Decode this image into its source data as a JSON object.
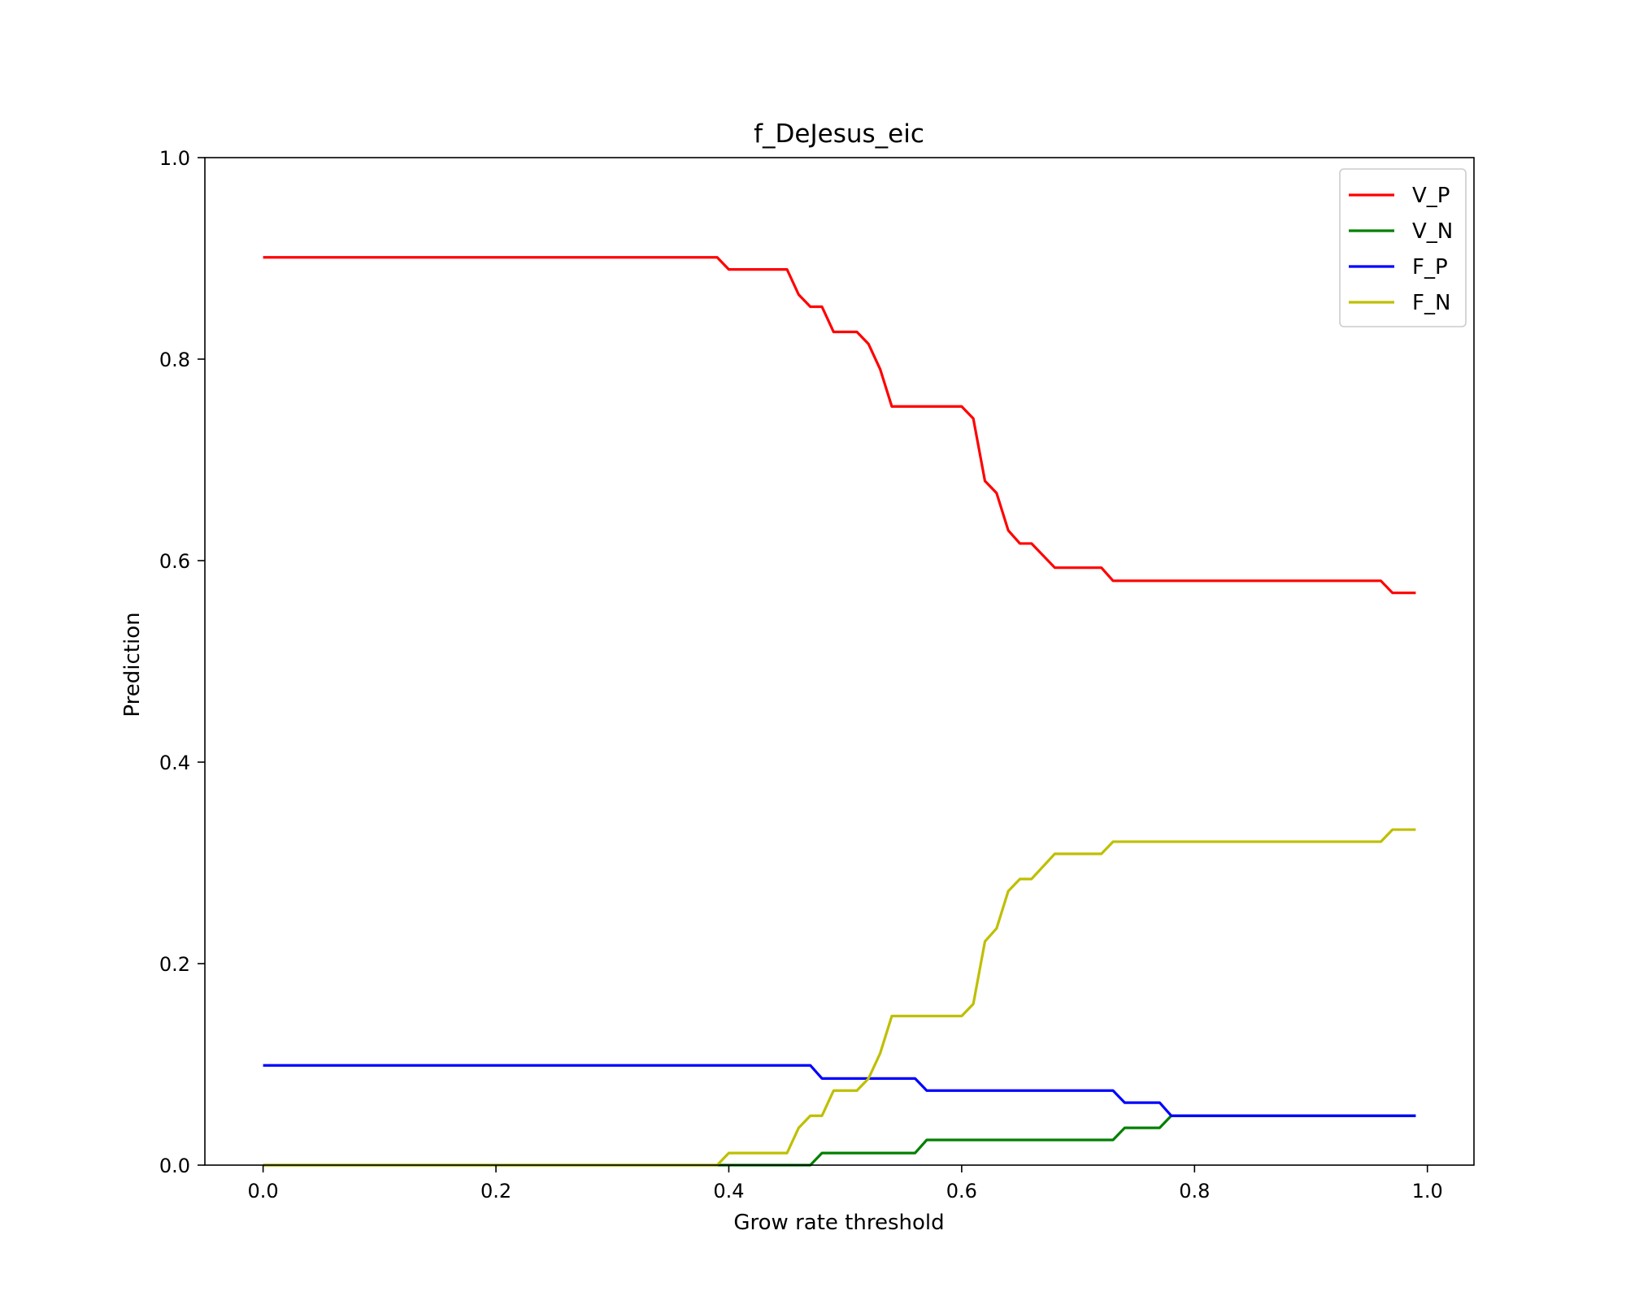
{
  "chart_data": {
    "type": "line",
    "title": "f_DeJesus_eic",
    "xlabel": "Grow rate threshold",
    "ylabel": "Prediction",
    "xlim": [
      -0.05,
      1.04
    ],
    "ylim": [
      0.0,
      1.0
    ],
    "xticks": [
      0.0,
      0.2,
      0.4,
      0.6,
      0.8,
      1.0
    ],
    "xtick_labels": [
      "0.0",
      "0.2",
      "0.4",
      "0.6",
      "0.8",
      "1.0"
    ],
    "yticks": [
      0.0,
      0.2,
      0.4,
      0.6,
      0.8,
      1.0
    ],
    "ytick_labels": [
      "0.0",
      "0.2",
      "0.4",
      "0.6",
      "0.8",
      "1.0"
    ],
    "grid": false,
    "legend_position": "top-right",
    "series": [
      {
        "name": "V_P",
        "color": "#ff0000",
        "points": [
          [
            0.0,
            0.901
          ],
          [
            0.39,
            0.901
          ],
          [
            0.4,
            0.889
          ],
          [
            0.45,
            0.889
          ],
          [
            0.46,
            0.864
          ],
          [
            0.47,
            0.852
          ],
          [
            0.48,
            0.852
          ],
          [
            0.49,
            0.827
          ],
          [
            0.51,
            0.827
          ],
          [
            0.52,
            0.815
          ],
          [
            0.53,
            0.79
          ],
          [
            0.54,
            0.753
          ],
          [
            0.6,
            0.753
          ],
          [
            0.61,
            0.741
          ],
          [
            0.62,
            0.679
          ],
          [
            0.63,
            0.667
          ],
          [
            0.64,
            0.63
          ],
          [
            0.65,
            0.617
          ],
          [
            0.66,
            0.617
          ],
          [
            0.68,
            0.593
          ],
          [
            0.72,
            0.593
          ],
          [
            0.73,
            0.58
          ],
          [
            0.96,
            0.58
          ],
          [
            0.97,
            0.568
          ],
          [
            0.99,
            0.568
          ]
        ]
      },
      {
        "name": "V_N",
        "color": "#008000",
        "points": [
          [
            0.0,
            0.0
          ],
          [
            0.47,
            0.0
          ],
          [
            0.48,
            0.012
          ],
          [
            0.56,
            0.012
          ],
          [
            0.57,
            0.025
          ],
          [
            0.73,
            0.025
          ],
          [
            0.74,
            0.037
          ],
          [
            0.77,
            0.037
          ],
          [
            0.78,
            0.049
          ],
          [
            0.99,
            0.049
          ]
        ]
      },
      {
        "name": "F_P",
        "color": "#0000ff",
        "points": [
          [
            0.0,
            0.099
          ],
          [
            0.47,
            0.099
          ],
          [
            0.48,
            0.086
          ],
          [
            0.56,
            0.086
          ],
          [
            0.57,
            0.074
          ],
          [
            0.73,
            0.074
          ],
          [
            0.74,
            0.062
          ],
          [
            0.77,
            0.062
          ],
          [
            0.78,
            0.049
          ],
          [
            0.99,
            0.049
          ]
        ]
      },
      {
        "name": "F_N",
        "color": "#bfbf00",
        "points": [
          [
            0.0,
            0.0
          ],
          [
            0.39,
            0.0
          ],
          [
            0.4,
            0.012
          ],
          [
            0.45,
            0.012
          ],
          [
            0.46,
            0.037
          ],
          [
            0.47,
            0.049
          ],
          [
            0.48,
            0.049
          ],
          [
            0.49,
            0.074
          ],
          [
            0.51,
            0.074
          ],
          [
            0.52,
            0.086
          ],
          [
            0.53,
            0.111
          ],
          [
            0.54,
            0.148
          ],
          [
            0.6,
            0.148
          ],
          [
            0.61,
            0.16
          ],
          [
            0.62,
            0.222
          ],
          [
            0.63,
            0.235
          ],
          [
            0.64,
            0.272
          ],
          [
            0.65,
            0.284
          ],
          [
            0.66,
            0.284
          ],
          [
            0.68,
            0.309
          ],
          [
            0.72,
            0.309
          ],
          [
            0.73,
            0.321
          ],
          [
            0.96,
            0.321
          ],
          [
            0.97,
            0.333
          ],
          [
            0.99,
            0.333
          ]
        ]
      }
    ]
  }
}
